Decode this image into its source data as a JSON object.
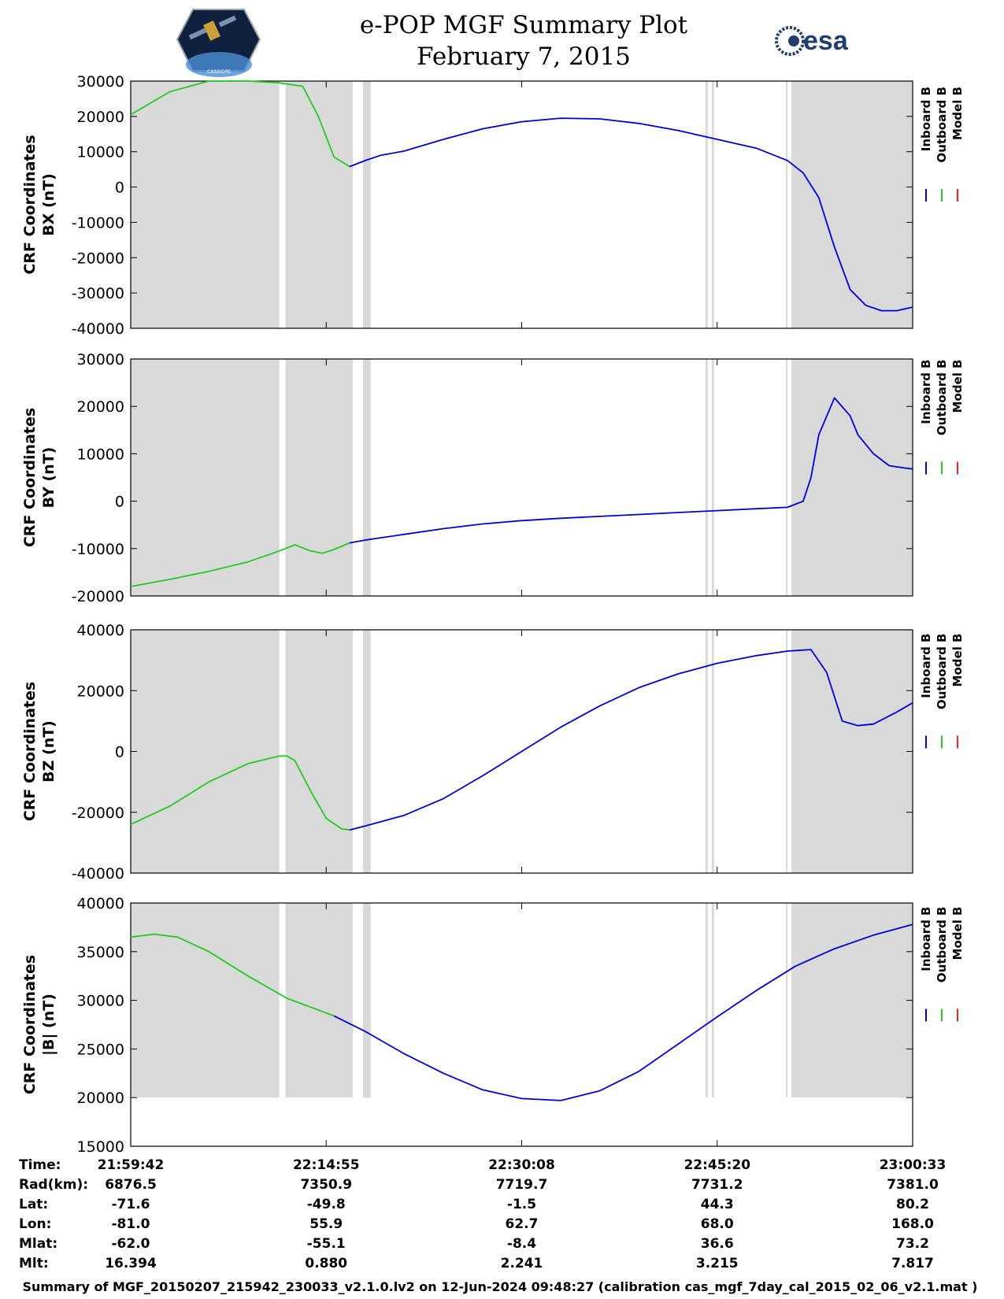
{
  "header": {
    "title_line1": "e-POP MGF Summary Plot",
    "title_line2": "February 7, 2015",
    "logo_left_text": "CASSIOPE",
    "logo_right_text": "esa"
  },
  "colors": {
    "inboard": "#0000dd",
    "outboard": "#22cc22",
    "model": "#ee2222",
    "shade": "#d9d9d9"
  },
  "chart_data": [
    {
      "type": "line",
      "ylabel_line1": "CRF Coordinates",
      "ylabel_line2": "BX (nT)",
      "ylim": [
        -40000,
        30000
      ],
      "yticks": [
        30000,
        20000,
        10000,
        0,
        -10000,
        -20000,
        -30000,
        -40000
      ],
      "xlim": [
        0,
        1.0
      ],
      "legend": [
        "Inboard B",
        "Outboard B",
        "Model B"
      ],
      "shaded_intervals": [
        [
          0,
          0.19
        ],
        [
          0.198,
          0.284
        ],
        [
          0.297,
          0.307
        ],
        [
          0.735,
          0.738
        ],
        [
          0.743,
          0.746
        ],
        [
          0.838,
          0.84
        ],
        [
          0.845,
          1.0
        ]
      ],
      "series": [
        {
          "name": "Outboard B",
          "x": [
            0,
            0.05,
            0.1,
            0.15,
            0.19,
            0.22,
            0.24,
            0.26,
            0.28
          ],
          "values": [
            20500,
            27000,
            30000,
            30000,
            29500,
            28500,
            20000,
            8500,
            5800
          ]
        },
        {
          "name": "Inboard B",
          "x": [
            0.28,
            0.3,
            0.32,
            0.35,
            0.4,
            0.45,
            0.5,
            0.55,
            0.6,
            0.65,
            0.7,
            0.75,
            0.8,
            0.84,
            0.86,
            0.88,
            0.9,
            0.92,
            0.94,
            0.96,
            0.98,
            1.0
          ],
          "values": [
            5800,
            7500,
            9000,
            10200,
            13500,
            16500,
            18500,
            19500,
            19300,
            18000,
            16000,
            13500,
            11000,
            7500,
            4000,
            -3000,
            -17000,
            -29000,
            -33500,
            -35000,
            -35000,
            -34000
          ]
        }
      ]
    },
    {
      "type": "line",
      "ylabel_line1": "CRF Coordinates",
      "ylabel_line2": "BY (nT)",
      "ylim": [
        -20000,
        30000
      ],
      "yticks": [
        30000,
        20000,
        10000,
        0,
        -10000,
        -20000
      ],
      "xlim": [
        0,
        1.0
      ],
      "legend": [
        "Inboard B",
        "Outboard B",
        "Model B"
      ],
      "shaded_intervals": [
        [
          0,
          0.19
        ],
        [
          0.198,
          0.284
        ],
        [
          0.297,
          0.307
        ],
        [
          0.735,
          0.738
        ],
        [
          0.743,
          0.746
        ],
        [
          0.838,
          0.84
        ],
        [
          0.845,
          1.0
        ]
      ],
      "series": [
        {
          "name": "Outboard B",
          "x": [
            0,
            0.05,
            0.1,
            0.15,
            0.19,
            0.21,
            0.23,
            0.245,
            0.26,
            0.28
          ],
          "values": [
            -18000,
            -16500,
            -14800,
            -12800,
            -10500,
            -9200,
            -10500,
            -11000,
            -10200,
            -8800
          ]
        },
        {
          "name": "Inboard B",
          "x": [
            0.28,
            0.3,
            0.35,
            0.4,
            0.45,
            0.5,
            0.55,
            0.6,
            0.65,
            0.7,
            0.75,
            0.8,
            0.84,
            0.86,
            0.87,
            0.88,
            0.9,
            0.92,
            0.93,
            0.95,
            0.97,
            0.99,
            1.0
          ],
          "values": [
            -8800,
            -8200,
            -7000,
            -5800,
            -4800,
            -4100,
            -3600,
            -3200,
            -2800,
            -2400,
            -2000,
            -1600,
            -1300,
            0,
            5000,
            14000,
            21800,
            18000,
            14000,
            10000,
            7500,
            7000,
            6800
          ]
        }
      ]
    },
    {
      "type": "line",
      "ylabel_line1": "CRF Coordinates",
      "ylabel_line2": "BZ (nT)",
      "ylim": [
        -40000,
        40000
      ],
      "yticks": [
        40000,
        20000,
        0,
        -20000,
        -40000
      ],
      "xlim": [
        0,
        1.0
      ],
      "legend": [
        "Inboard B",
        "Outboard B",
        "Model B"
      ],
      "shaded_intervals": [
        [
          0,
          0.19
        ],
        [
          0.198,
          0.284
        ],
        [
          0.297,
          0.307
        ],
        [
          0.735,
          0.738
        ],
        [
          0.743,
          0.746
        ],
        [
          0.838,
          0.84
        ],
        [
          0.845,
          1.0
        ]
      ],
      "series": [
        {
          "name": "Outboard B",
          "x": [
            0,
            0.05,
            0.1,
            0.15,
            0.19,
            0.2,
            0.21,
            0.23,
            0.25,
            0.27,
            0.28
          ],
          "values": [
            -24000,
            -18000,
            -10000,
            -4000,
            -1500,
            -1500,
            -3000,
            -13000,
            -22000,
            -25500,
            -25800
          ]
        },
        {
          "name": "Inboard B",
          "x": [
            0.28,
            0.3,
            0.35,
            0.4,
            0.45,
            0.5,
            0.55,
            0.6,
            0.65,
            0.7,
            0.75,
            0.8,
            0.84,
            0.87,
            0.89,
            0.91,
            0.93,
            0.95,
            0.98,
            1.0
          ],
          "values": [
            -25800,
            -24500,
            -21000,
            -15500,
            -8000,
            0,
            8000,
            15000,
            21000,
            25500,
            29000,
            31500,
            33000,
            33500,
            26000,
            10000,
            8500,
            9000,
            13000,
            16000
          ]
        }
      ]
    },
    {
      "type": "line",
      "ylabel_line1": "CRF Coordinates",
      "ylabel_line2": "|B| (nT)",
      "ylim": [
        15000,
        40000
      ],
      "yticks": [
        40000,
        35000,
        30000,
        25000,
        20000,
        15000
      ],
      "xlim": [
        0,
        1.0
      ],
      "legend": [
        "Inboard B",
        "Outboard B",
        "Model B"
      ],
      "shaded_intervals": [
        [
          0,
          0.19
        ],
        [
          0.198,
          0.284
        ],
        [
          0.297,
          0.307
        ],
        [
          0.735,
          0.738
        ],
        [
          0.743,
          0.746
        ],
        [
          0.838,
          0.84
        ],
        [
          0.845,
          1.0
        ]
      ],
      "shade_floor": 20000,
      "series": [
        {
          "name": "Outboard B",
          "x": [
            0,
            0.03,
            0.06,
            0.1,
            0.15,
            0.2,
            0.25,
            0.26
          ],
          "values": [
            36500,
            36800,
            36500,
            35000,
            32500,
            30200,
            28700,
            28400
          ]
        },
        {
          "name": "Inboard B",
          "x": [
            0.26,
            0.3,
            0.35,
            0.4,
            0.45,
            0.5,
            0.55,
            0.6,
            0.65,
            0.7,
            0.75,
            0.8,
            0.85,
            0.9,
            0.95,
            1.0
          ],
          "values": [
            28400,
            26800,
            24500,
            22500,
            20800,
            19900,
            19700,
            20700,
            22700,
            25500,
            28300,
            31000,
            33500,
            35300,
            36700,
            37800
          ]
        }
      ]
    }
  ],
  "table": {
    "rows": [
      {
        "label": "Time:",
        "values": [
          "21:59:42",
          "22:14:55",
          "22:30:08",
          "22:45:20",
          "23:00:33"
        ]
      },
      {
        "label": "Rad(km):",
        "values": [
          "6876.5",
          "7350.9",
          "7719.7",
          "7731.2",
          "7381.0"
        ]
      },
      {
        "label": "Lat:",
        "values": [
          "-71.6",
          "-49.8",
          "-1.5",
          "44.3",
          "80.2"
        ]
      },
      {
        "label": "Lon:",
        "values": [
          "-81.0",
          "55.9",
          "62.7",
          "68.0",
          "168.0"
        ]
      },
      {
        "label": "Mlat:",
        "values": [
          "-62.0",
          "-55.1",
          "-8.4",
          "36.6",
          "73.2"
        ]
      },
      {
        "label": "Mlt:",
        "values": [
          "16.394",
          "0.880",
          "2.241",
          "3.215",
          "7.817"
        ]
      }
    ]
  },
  "footer": "Summary of MGF_20150207_215942_230033_v2.1.0.lv2 on 12-Jun-2024 09:48:27 (calibration cas_mgf_7day_cal_2015_02_06_v2.1.mat )"
}
